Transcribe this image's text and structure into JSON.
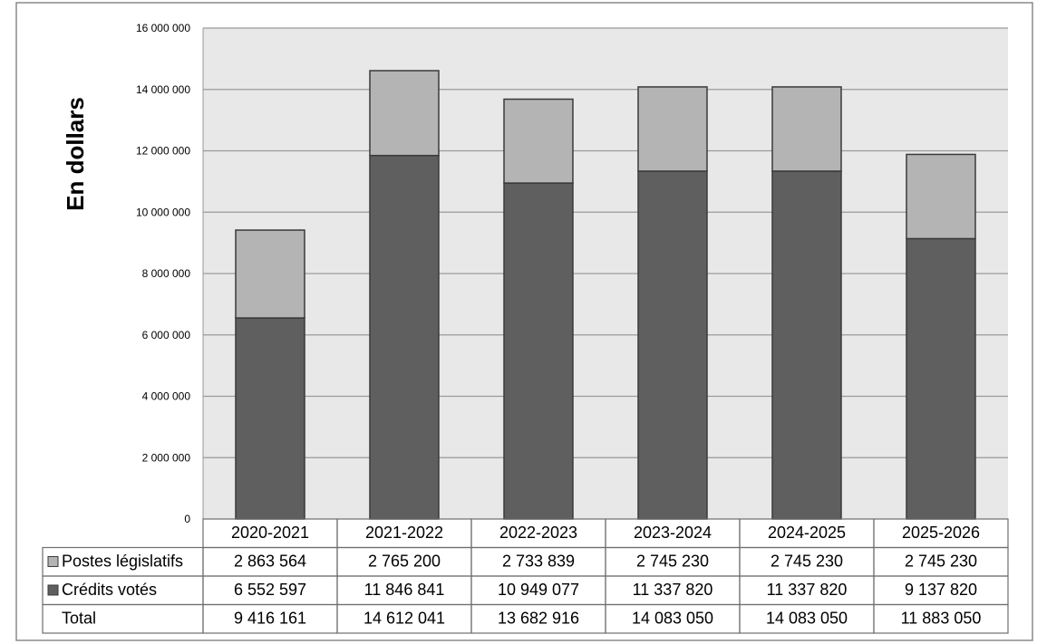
{
  "chart_data": {
    "type": "bar",
    "stacked": true,
    "ylabel": "En dollars",
    "ylim": [
      0,
      16000000
    ],
    "ytick_step": 2000000,
    "yticks": [
      "0",
      "2 000 000",
      "4 000 000",
      "6 000 000",
      "8 000 000",
      "10 000 000",
      "12 000 000",
      "14 000 000",
      "16 000 000"
    ],
    "grid": true,
    "categories": [
      "2020-2021",
      "2021-2022",
      "2022-2023",
      "2023-2024",
      "2024-2025",
      "2025-2026"
    ],
    "series": [
      {
        "name": "Postes législatifs",
        "color": "#b4b4b4",
        "values": [
          2863564,
          2765200,
          2733839,
          2745230,
          2745230,
          2745230
        ],
        "labels": [
          "2 863 564",
          "2 765 200",
          "2 733 839",
          "2 745 230",
          "2 745 230",
          "2 745 230"
        ]
      },
      {
        "name": "Crédits votés",
        "color": "#5f5f5f",
        "values": [
          6552597,
          11846841,
          10949077,
          11337820,
          11337820,
          9137820
        ],
        "labels": [
          "6 552 597",
          "11 846 841",
          "10 949 077",
          "11 337 820",
          "11 337 820",
          "9 137 820"
        ]
      }
    ],
    "total": {
      "name": "Total",
      "values": [
        9416161,
        14612041,
        13682916,
        14083050,
        14083050,
        11883050
      ],
      "labels": [
        "9 416 161",
        "14 612 041",
        "13 682 916",
        "14 083 050",
        "14 083 050",
        "11 883 050"
      ]
    },
    "data_table": true,
    "plot_background": "#e8e8e8",
    "gridline_color": "#9a9a9a"
  }
}
